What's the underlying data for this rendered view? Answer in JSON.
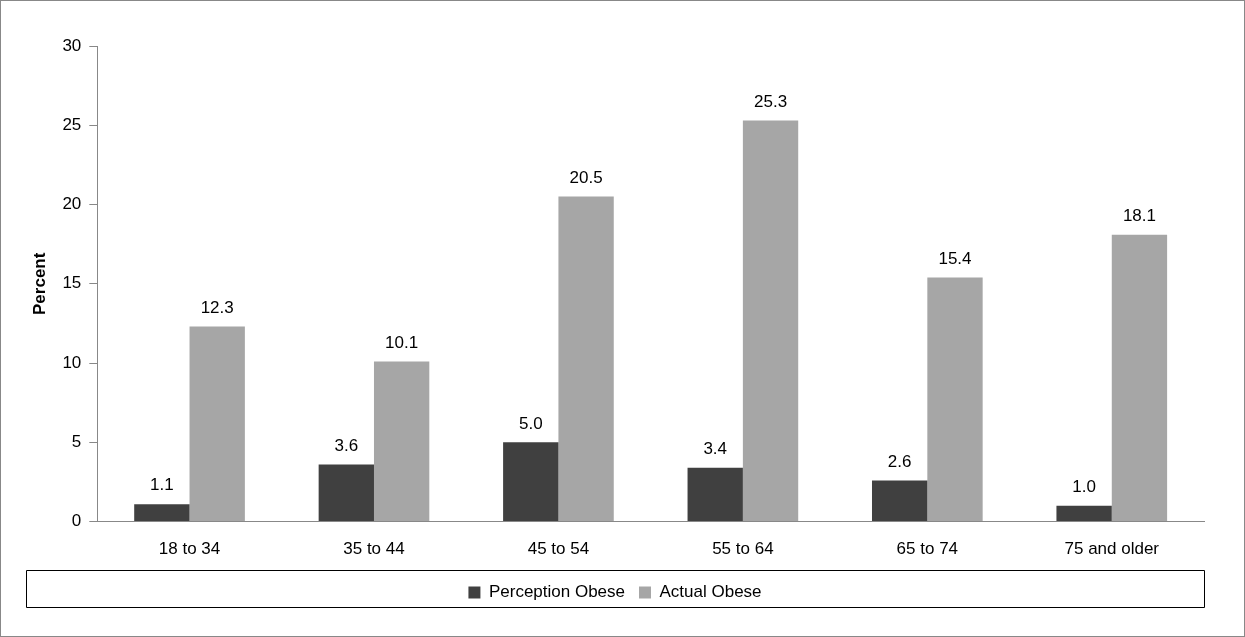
{
  "chart_data": {
    "type": "bar",
    "ylabel": "Percent",
    "categories": [
      "18 to 34",
      "35 to 44",
      "45 to 54",
      "55 to 64",
      "65 to 74",
      "75 and older"
    ],
    "series": [
      {
        "name": "Perception Obese",
        "color": "#404040",
        "values": [
          1.1,
          3.6,
          5.0,
          3.4,
          2.6,
          1.0
        ],
        "value_labels": [
          "1.1",
          "3.6",
          "5.0",
          "3.4",
          "2.6",
          "1.0"
        ]
      },
      {
        "name": "Actual Obese",
        "color": "#a6a6a6",
        "values": [
          12.3,
          10.1,
          20.5,
          25.3,
          15.4,
          18.1
        ],
        "value_labels": [
          "12.3",
          "10.1",
          "20.5",
          "25.3",
          "15.4",
          "18.1"
        ]
      }
    ],
    "ylim": [
      0,
      30
    ],
    "yticks": [
      0,
      5,
      10,
      15,
      20,
      25,
      30
    ],
    "grid": false,
    "legend": "bottom"
  }
}
